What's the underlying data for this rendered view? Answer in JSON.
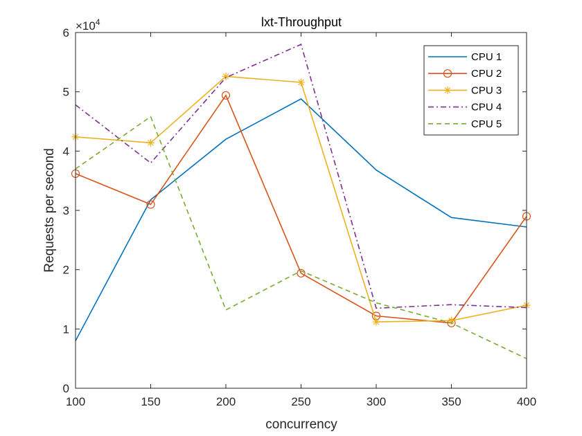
{
  "chart_data": {
    "type": "line",
    "title": "lxt-Throughput",
    "xlabel": "concurrency",
    "ylabel": "Requests per second",
    "y_exponent_label": "×10",
    "y_exponent_power": "4",
    "x": [
      100,
      150,
      200,
      250,
      300,
      350,
      400
    ],
    "xlim": [
      100,
      400
    ],
    "ylim": [
      0,
      60000
    ],
    "x_ticks": [
      "100",
      "150",
      "200",
      "250",
      "300",
      "350",
      "400"
    ],
    "y_ticks": [
      "0",
      "1",
      "2",
      "3",
      "4",
      "5",
      "6"
    ],
    "grid": false,
    "legend_position": "top-right",
    "series": [
      {
        "name": "CPU 1",
        "color": "#0072BD",
        "dash": "solid",
        "marker": "none",
        "values": [
          8000,
          31800,
          42000,
          48800,
          36800,
          28800,
          27200
        ]
      },
      {
        "name": "CPU 2",
        "color": "#D95319",
        "dash": "solid",
        "marker": "circle",
        "values": [
          36200,
          31000,
          49400,
          19400,
          12200,
          11000,
          29000
        ]
      },
      {
        "name": "CPU 3",
        "color": "#EDB120",
        "dash": "solid",
        "marker": "asterisk",
        "values": [
          42400,
          41400,
          52600,
          51600,
          11200,
          11400,
          14000
        ]
      },
      {
        "name": "CPU 4",
        "color": "#7E2F8E",
        "dash": "dashdot",
        "marker": "none",
        "values": [
          47800,
          38000,
          52400,
          58000,
          13500,
          14100,
          13600
        ]
      },
      {
        "name": "CPU 5",
        "color": "#77AC30",
        "dash": "dashed",
        "marker": "none",
        "values": [
          37000,
          45800,
          13200,
          19800,
          14400,
          11000,
          5000
        ]
      }
    ]
  }
}
